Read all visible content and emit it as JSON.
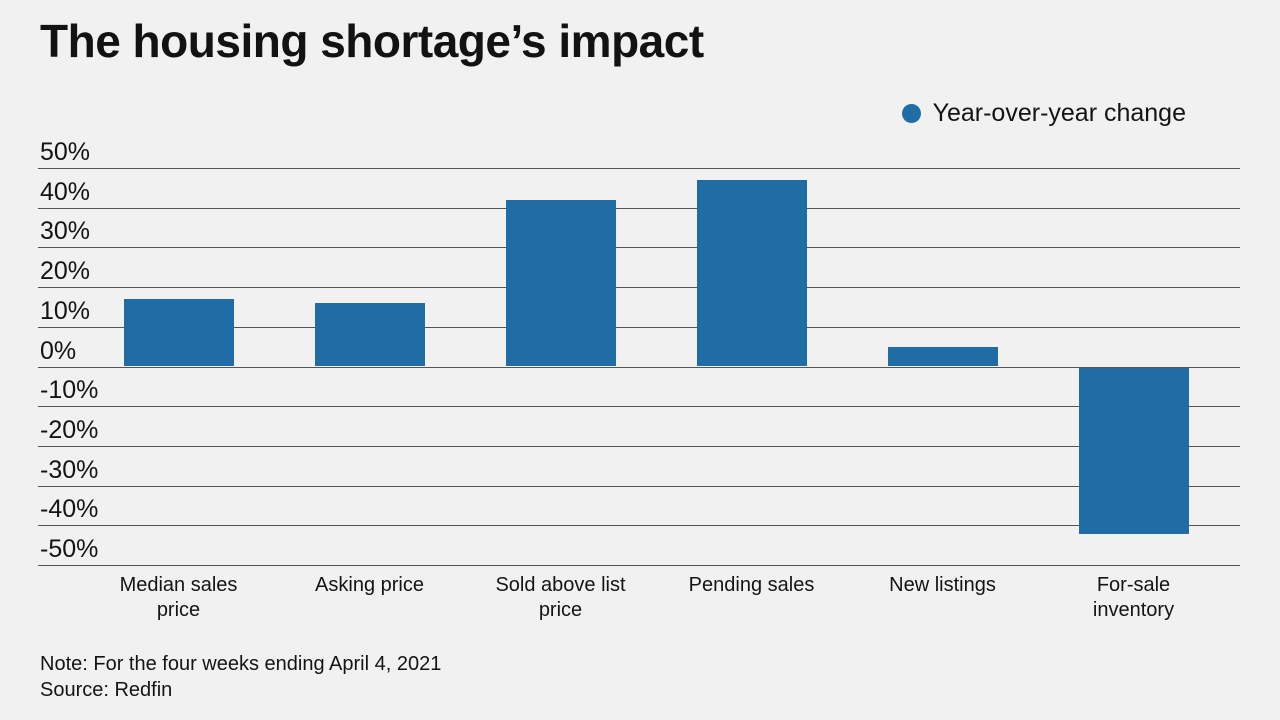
{
  "title": "The housing shortage’s impact",
  "legend": {
    "label": "Year-over-year change"
  },
  "note": "Note: For the four weeks ending April 4, 2021",
  "source": "Source: Redfin",
  "colors": {
    "background": "#f0f1f0",
    "bar": "#1f6da4",
    "gridline": "#555555",
    "text": "#141414"
  },
  "chart_data": {
    "type": "bar",
    "title": "The housing shortage’s impact",
    "series_name": "Year-over-year change",
    "categories": [
      "Median sales price",
      "Asking price",
      "Sold above list price",
      "Pending sales",
      "New listings",
      "For-sale inventory"
    ],
    "values": [
      17,
      16,
      42,
      47,
      5,
      -42
    ],
    "unit": "%",
    "ylim": [
      -50,
      50
    ],
    "ytick_step": 10,
    "ytick_labels": [
      "50%",
      "40%",
      "30%",
      "20%",
      "10%",
      "0%",
      "-10%",
      "-20%",
      "-30%",
      "-40%",
      "-50%"
    ],
    "grid": true,
    "legend_position": "top-right",
    "note": "Note: For the four weeks ending April 4, 2021",
    "source": "Source: Redfin"
  }
}
